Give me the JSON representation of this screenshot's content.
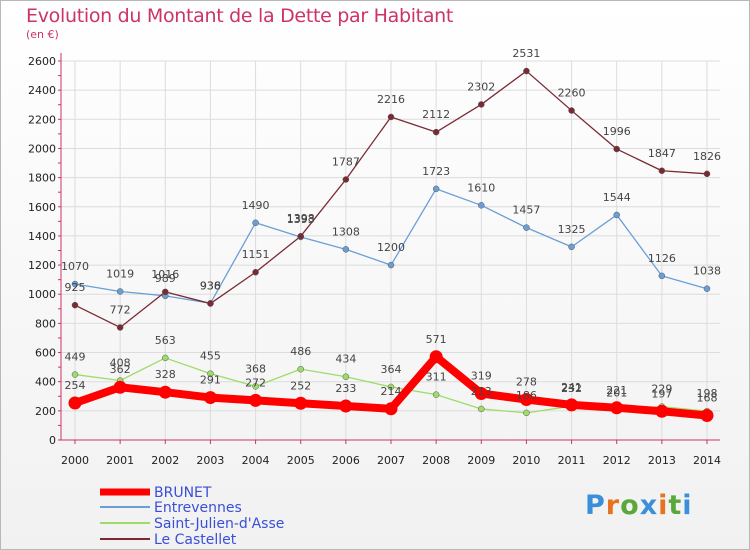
{
  "title": "Evolution du Montant de la Dette par Habitant",
  "unit_label": "(en €)",
  "logo_text": "Proxiti",
  "chart_data": {
    "type": "line",
    "title": "Evolution du Montant de la Dette par Habitant",
    "ylabel": "(en €)",
    "ylim": [
      0,
      2600
    ],
    "y_ticks": [
      "0",
      "200",
      "400",
      "600",
      "800",
      "1000",
      "1200",
      "1400",
      "1600",
      "1800",
      "2000",
      "2200",
      "2400",
      "2600"
    ],
    "grid": true,
    "legend_position": "bottom-left",
    "x": [
      "2000",
      "2001",
      "2002",
      "2003",
      "2004",
      "2005",
      "2006",
      "2007",
      "2008",
      "2009",
      "2010",
      "2011",
      "2012",
      "2013",
      "2014"
    ],
    "series": [
      {
        "name": "BRUNET",
        "color": "#ff0000",
        "values": [
          254,
          362,
          328,
          291,
          272,
          252,
          233,
          214,
          571,
          319,
          278,
          241,
          221,
          197,
          168
        ]
      },
      {
        "name": "Entrevennes",
        "color": "#6a9fd6",
        "values": [
          1070,
          1019,
          989,
          938,
          1490,
          1393,
          1308,
          1200,
          1723,
          1610,
          1457,
          1325,
          1544,
          1126,
          1038
        ]
      },
      {
        "name": "Saint-Julien-d'Asse",
        "color": "#9ddc6a",
        "values": [
          449,
          408,
          563,
          455,
          368,
          486,
          434,
          364,
          311,
          213,
          186,
          232,
          201,
          229,
          198
        ]
      },
      {
        "name": "Le Castellet",
        "color": "#7a2a33",
        "values": [
          925,
          772,
          1016,
          936,
          1151,
          1398,
          1787,
          2216,
          2112,
          2302,
          2531,
          2260,
          1996,
          1847,
          1826
        ]
      }
    ]
  }
}
